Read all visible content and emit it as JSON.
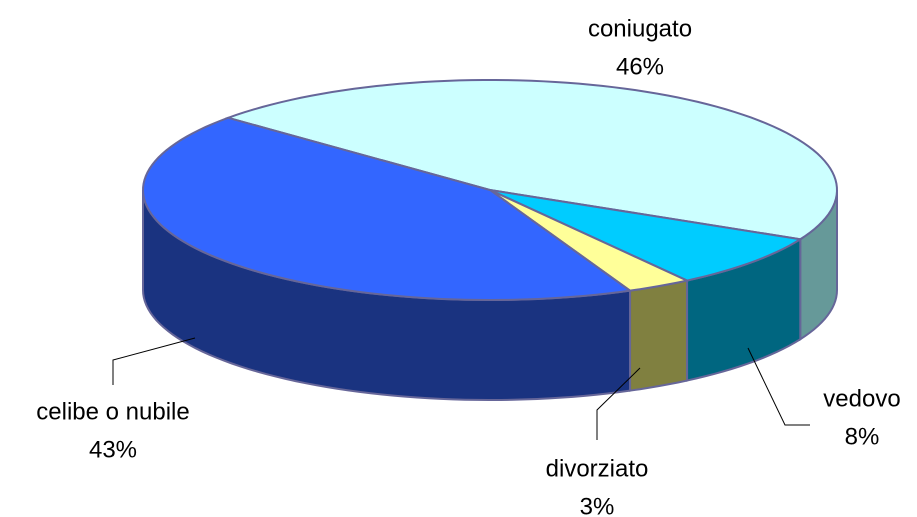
{
  "chart_data": {
    "type": "pie3d",
    "categories": [
      "coniugato",
      "vedovo",
      "divorziato",
      "celibe o nubile"
    ],
    "values": [
      46,
      8,
      3,
      43
    ],
    "value_labels": [
      "46%",
      "8%",
      "3%",
      "43%"
    ],
    "colors": [
      "#ccffff",
      "#00ccff",
      "#ffff99",
      "#3366ff"
    ],
    "side_colors": [
      "#669999",
      "#006680",
      "#808040",
      "#1a3380"
    ]
  }
}
